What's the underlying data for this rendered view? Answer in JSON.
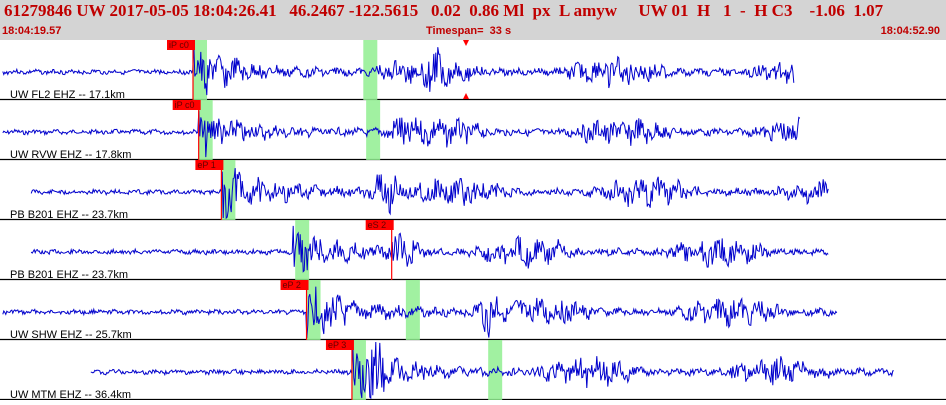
{
  "header": {
    "summary": "61279846 UW 2017-05-05 18:04:26.41   46.2467 -122.5615   0.02  0.86 Ml  px  L amyw     UW 01  H   1  -  H C3    -1.06  1.07",
    "start_time": "18:04:19.57",
    "timespan": "Timespan=  33 s",
    "end_time": "18:04:52.90"
  },
  "colors": {
    "header_bg": "#d4d4d4",
    "header_text": "#c00000",
    "trace": "#0000cc",
    "pick": "#ff0000",
    "window": "#90ee90"
  },
  "channels": [
    {
      "label": "UW FL2 EHZ -- 17.1km",
      "picks": [
        {
          "label": "iP c0",
          "time": 6.8
        }
      ],
      "windows": [
        6.8,
        12.8
      ],
      "start": 0.1,
      "end": 28.0,
      "onset": 6.8,
      "peak_time": 15.3,
      "amp": 0.9,
      "seed": 3
    },
    {
      "label": "UW RVW EHZ -- 17.8km",
      "picks": [
        {
          "label": "iP c0",
          "time": 7.0
        }
      ],
      "windows": [
        7.0,
        12.9
      ],
      "start": 0.1,
      "end": 28.2,
      "onset": 7.0,
      "peak_time": 14.2,
      "amp": 0.8,
      "seed": 7
    },
    {
      "label": "PB B201 EHZ -- 23.7km",
      "picks": [
        {
          "label": "eP 1",
          "time": 7.8
        }
      ],
      "windows": [
        7.8
      ],
      "start": 1.1,
      "end": 29.2,
      "onset": 7.8,
      "peak_time": 13.6,
      "amp": 1.0,
      "seed": 11
    },
    {
      "label": "PB B201 EHZ -- 23.7km",
      "picks": [
        {
          "label": "eS 2",
          "time": 13.8
        }
      ],
      "windows": [
        10.4
      ],
      "start": 1.1,
      "end": 29.2,
      "onset": 10.3,
      "peak_time": 14.2,
      "amp": 0.8,
      "seed": 13
    },
    {
      "label": "UW SHW EHZ -- 25.7km",
      "picks": [
        {
          "label": "eP 2",
          "time": 10.8
        }
      ],
      "windows": [
        10.8,
        14.3
      ],
      "start": 0.1,
      "end": 29.5,
      "onset": 10.8,
      "peak_time": 17.3,
      "amp": 1.0,
      "seed": 17
    },
    {
      "label": "UW MTM EHZ -- 36.4km",
      "picks": [
        {
          "label": "eP 3",
          "time": 12.4
        }
      ],
      "windows": [
        12.4,
        17.2
      ],
      "start": 3.2,
      "end": 31.5,
      "onset": 12.4,
      "peak_time": 13.1,
      "amp": 1.0,
      "seed": 19
    }
  ]
}
